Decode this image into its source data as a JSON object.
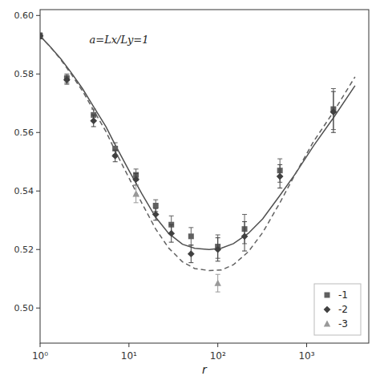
{
  "chart_data": {
    "type": "scatter",
    "xlabel": "r",
    "annotation": "a=Lx/Ly=1",
    "log": "x",
    "grid": false,
    "legend": "lower right",
    "xlim": [
      1,
      5000
    ],
    "xticks": [
      {
        "value": 1,
        "label": "10⁰"
      },
      {
        "value": 10,
        "label": "10¹"
      },
      {
        "value": 100,
        "label": "10²"
      },
      {
        "value": 1000,
        "label": "10³"
      }
    ],
    "ylim": [
      0.488,
      0.602
    ],
    "yticks": [
      {
        "value": 0.5,
        "label": "0.50"
      },
      0.52,
      0.54,
      0.56,
      0.58,
      {
        "value": 0.6,
        "label": "0.60"
      }
    ],
    "series": [
      {
        "type": "line",
        "line_style": "solid",
        "color": "#505050",
        "x": [
          1,
          1.3,
          1.7,
          2.2,
          3,
          4,
          5.5,
          7,
          10,
          14,
          20,
          28,
          40,
          55,
          80,
          110,
          150,
          220,
          320,
          500,
          750,
          1200,
          2000,
          3500
        ],
        "values": [
          0.593,
          0.5893,
          0.5853,
          0.5808,
          0.575,
          0.5688,
          0.562,
          0.5558,
          0.547,
          0.539,
          0.531,
          0.5255,
          0.5218,
          0.5204,
          0.52,
          0.5205,
          0.522,
          0.5255,
          0.5305,
          0.5385,
          0.546,
          0.5555,
          0.565,
          0.576
        ]
      },
      {
        "type": "line",
        "line_style": "dashed",
        "color": "#606060",
        "x": [
          1,
          1.3,
          1.7,
          2.2,
          3,
          4,
          5.5,
          7,
          10,
          14,
          20,
          28,
          40,
          55,
          80,
          110,
          150,
          220,
          320,
          500,
          750,
          1200,
          2000,
          3500
        ],
        "values": [
          0.593,
          0.5893,
          0.585,
          0.5803,
          0.5742,
          0.5676,
          0.5604,
          0.5537,
          0.5445,
          0.5358,
          0.527,
          0.5205,
          0.5158,
          0.5135,
          0.5128,
          0.513,
          0.5148,
          0.5192,
          0.5258,
          0.536,
          0.546,
          0.557,
          0.567,
          0.579
        ]
      },
      {
        "name": "-1",
        "type": "scatter",
        "marker": "square",
        "color": "#606060",
        "x": [
          1,
          2,
          4,
          7,
          12,
          20,
          30,
          50,
          100,
          200,
          500,
          2000
        ],
        "values": [
          0.593,
          0.5785,
          0.566,
          0.5545,
          0.5455,
          0.535,
          0.5285,
          0.5245,
          0.521,
          0.527,
          0.547,
          0.568
        ],
        "errors": [
          0.001,
          0.0015,
          0.002,
          0.002,
          0.002,
          0.002,
          0.003,
          0.003,
          0.004,
          0.005,
          0.004,
          0.007
        ]
      },
      {
        "name": "-2",
        "type": "scatter",
        "marker": "diamond",
        "color": "#404040",
        "x": [
          1,
          2,
          4,
          7,
          12,
          20,
          30,
          50,
          100,
          200,
          500,
          2000
        ],
        "values": [
          0.593,
          0.578,
          0.564,
          0.552,
          0.544,
          0.532,
          0.5255,
          0.5185,
          0.52,
          0.5245,
          0.545,
          0.567
        ],
        "errors": [
          0.001,
          0.0015,
          0.002,
          0.002,
          0.002,
          0.002,
          0.003,
          0.003,
          0.004,
          0.005,
          0.004,
          0.007
        ]
      },
      {
        "name": "-3",
        "type": "scatter",
        "marker": "triangle-up",
        "color": "#999999",
        "x": [
          12,
          100
        ],
        "values": [
          0.539,
          0.5085
        ],
        "errors": [
          0.003,
          0.003
        ]
      }
    ]
  }
}
